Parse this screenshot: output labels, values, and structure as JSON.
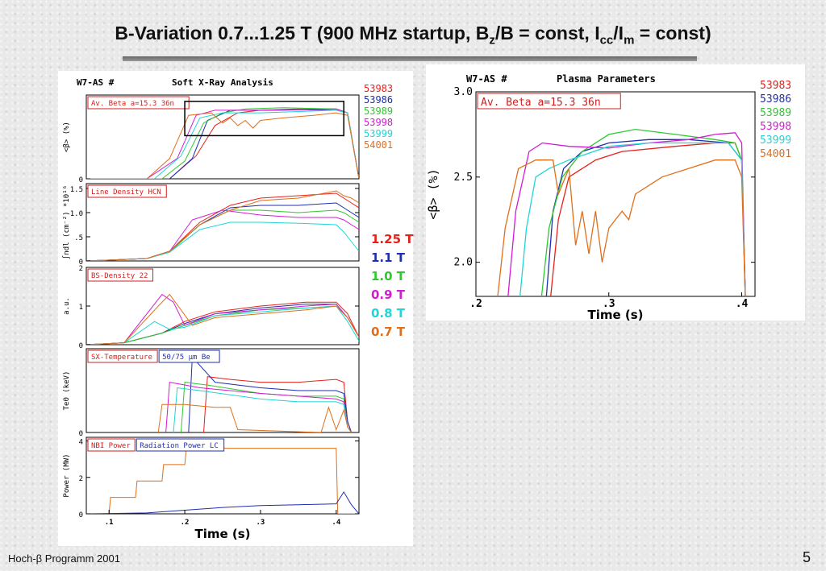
{
  "slide": {
    "title": "B-Variation 0.7...1.25 T (900 MHz startup, Bz/B = const, Icc/Im = const)",
    "footer_left": "Hoch-β Programm 2001",
    "page_number": "5"
  },
  "colors": {
    "53983": "#e8201a",
    "53986": "#1e2fb0",
    "53989": "#2fc92f",
    "53998": "#d41bd4",
    "53999": "#1fd6d6",
    "54001": "#e06f1c"
  },
  "field_legend": [
    {
      "label": "1.25 T",
      "color": "#e8201a"
    },
    {
      "label": "1.1 T",
      "color": "#1e2fb0"
    },
    {
      "label": "1.0 T",
      "color": "#2fc92f"
    },
    {
      "label": "0.9 T",
      "color": "#d41bd4"
    },
    {
      "label": "0.8 T",
      "color": "#1fd6d6"
    },
    {
      "label": "0.7 T",
      "color": "#e06f1c"
    }
  ],
  "chart_data": [
    {
      "type": "line",
      "header_left": "W7-AS #",
      "header_right": "Soft X-Ray Analysis",
      "label_box": "Av. Beta  a=15.3  36n",
      "ylabel": "<β> (%)",
      "yticks": [
        "0"
      ],
      "xlim": [
        0.07,
        0.43
      ],
      "ylim": [
        0,
        3.3
      ],
      "legend": [
        "53983",
        "53986",
        "53989",
        "53998",
        "53999",
        "54001"
      ],
      "series": [
        {
          "name": "53983",
          "x": [
            0.07,
            0.18,
            0.215,
            0.24,
            0.27,
            0.3,
            0.35,
            0.4,
            0.415,
            0.43
          ],
          "y": [
            0,
            0,
            0.9,
            2.1,
            2.6,
            2.7,
            2.75,
            2.75,
            2.6,
            0
          ]
        },
        {
          "name": "53986",
          "x": [
            0.07,
            0.18,
            0.21,
            0.23,
            0.26,
            0.3,
            0.35,
            0.4,
            0.415,
            0.43
          ],
          "y": [
            0,
            0,
            0.8,
            2.3,
            2.7,
            2.7,
            2.72,
            2.7,
            2.6,
            0
          ]
        },
        {
          "name": "53989",
          "x": [
            0.07,
            0.17,
            0.2,
            0.225,
            0.25,
            0.28,
            0.33,
            0.4,
            0.415,
            0.43
          ],
          "y": [
            0,
            0,
            0.7,
            2.2,
            2.6,
            2.75,
            2.8,
            2.75,
            2.6,
            0
          ]
        },
        {
          "name": "53998",
          "x": [
            0.07,
            0.15,
            0.19,
            0.215,
            0.24,
            0.28,
            0.33,
            0.4,
            0.415,
            0.43
          ],
          "y": [
            0,
            0,
            0.8,
            2.5,
            2.7,
            2.7,
            2.7,
            2.75,
            2.6,
            0
          ]
        },
        {
          "name": "53999",
          "x": [
            0.07,
            0.16,
            0.195,
            0.22,
            0.25,
            0.3,
            0.35,
            0.4,
            0.415,
            0.43
          ],
          "y": [
            0,
            0,
            0.9,
            2.4,
            2.6,
            2.6,
            2.65,
            2.7,
            2.6,
            0
          ]
        },
        {
          "name": "54001",
          "x": [
            0.07,
            0.15,
            0.18,
            0.205,
            0.235,
            0.25,
            0.26,
            0.27,
            0.28,
            0.29,
            0.3,
            0.33,
            0.37,
            0.4,
            0.415,
            0.43
          ],
          "y": [
            0,
            0,
            0.8,
            2.5,
            2.6,
            2.2,
            2.4,
            2.1,
            2.3,
            2.0,
            2.3,
            2.4,
            2.5,
            2.6,
            2.5,
            0
          ]
        }
      ]
    },
    {
      "type": "line",
      "label_box": "Line Density HCN",
      "ylabel": "∫ndl (cm⁻²) *10¹⁶",
      "yticks": [
        "0",
        ".5",
        "1.0",
        "1.5"
      ],
      "xlim": [
        0.07,
        0.43
      ],
      "ylim": [
        0,
        1.6
      ],
      "series": [
        {
          "name": "53983",
          "x": [
            0.07,
            0.15,
            0.18,
            0.22,
            0.26,
            0.3,
            0.35,
            0.4,
            0.41,
            0.42,
            0.43
          ],
          "y": [
            0,
            0.05,
            0.2,
            0.8,
            1.15,
            1.3,
            1.35,
            1.4,
            1.3,
            1.2,
            1.1
          ]
        },
        {
          "name": "53986",
          "x": [
            0.07,
            0.15,
            0.18,
            0.22,
            0.26,
            0.3,
            0.35,
            0.4,
            0.41,
            0.42,
            0.43
          ],
          "y": [
            0,
            0.05,
            0.2,
            0.75,
            1.1,
            1.15,
            1.15,
            1.2,
            1.1,
            1.0,
            0.9
          ]
        },
        {
          "name": "53989",
          "x": [
            0.07,
            0.15,
            0.18,
            0.22,
            0.26,
            0.3,
            0.35,
            0.4,
            0.41,
            0.42,
            0.43
          ],
          "y": [
            0,
            0.05,
            0.18,
            0.75,
            1.05,
            1.05,
            1.0,
            1.05,
            1.0,
            0.9,
            0.8
          ]
        },
        {
          "name": "53998",
          "x": [
            0.07,
            0.15,
            0.18,
            0.21,
            0.25,
            0.3,
            0.35,
            0.4,
            0.41,
            0.42,
            0.43
          ],
          "y": [
            0,
            0.05,
            0.2,
            0.85,
            1.05,
            0.95,
            0.9,
            0.9,
            0.85,
            0.75,
            0.65
          ]
        },
        {
          "name": "53999",
          "x": [
            0.07,
            0.15,
            0.18,
            0.22,
            0.26,
            0.3,
            0.35,
            0.4,
            0.41,
            0.42,
            0.43
          ],
          "y": [
            0,
            0.05,
            0.18,
            0.65,
            0.8,
            0.8,
            0.78,
            0.75,
            0.6,
            0.4,
            0.2
          ]
        },
        {
          "name": "54001",
          "x": [
            0.07,
            0.15,
            0.18,
            0.22,
            0.26,
            0.3,
            0.35,
            0.4,
            0.41,
            0.42,
            0.43
          ],
          "y": [
            0,
            0.05,
            0.2,
            0.75,
            1.05,
            1.25,
            1.3,
            1.45,
            1.35,
            1.3,
            1.2
          ]
        }
      ]
    },
    {
      "type": "line",
      "label_box": "BS-Density 22",
      "ylabel": "a.u.",
      "yticks": [
        "0",
        "1",
        "2"
      ],
      "xlim": [
        0.07,
        0.43
      ],
      "ylim": [
        0,
        2.0
      ],
      "series": [
        {
          "name": "53983",
          "x": [
            0.07,
            0.12,
            0.17,
            0.2,
            0.24,
            0.3,
            0.36,
            0.4,
            0.415,
            0.43
          ],
          "y": [
            0,
            0.05,
            0.3,
            0.6,
            0.85,
            1.0,
            1.1,
            1.1,
            0.8,
            0.2
          ]
        },
        {
          "name": "53986",
          "x": [
            0.07,
            0.12,
            0.17,
            0.2,
            0.24,
            0.3,
            0.36,
            0.4,
            0.415,
            0.43
          ],
          "y": [
            0,
            0.05,
            0.3,
            0.55,
            0.8,
            0.95,
            1.05,
            1.05,
            0.7,
            0.2
          ]
        },
        {
          "name": "53989",
          "x": [
            0.07,
            0.12,
            0.17,
            0.2,
            0.24,
            0.3,
            0.36,
            0.4,
            0.415,
            0.43
          ],
          "y": [
            0,
            0.05,
            0.3,
            0.5,
            0.75,
            0.9,
            0.95,
            1.0,
            0.7,
            0.2
          ]
        },
        {
          "name": "53998",
          "x": [
            0.07,
            0.12,
            0.17,
            0.185,
            0.2,
            0.24,
            0.3,
            0.36,
            0.4,
            0.415,
            0.43
          ],
          "y": [
            0,
            0.05,
            1.3,
            1.1,
            0.5,
            0.8,
            0.9,
            1.0,
            1.05,
            0.7,
            0.2
          ]
        },
        {
          "name": "53999",
          "x": [
            0.07,
            0.12,
            0.16,
            0.18,
            0.2,
            0.24,
            0.3,
            0.36,
            0.4,
            0.415,
            0.43
          ],
          "y": [
            0,
            0.05,
            0.6,
            0.4,
            0.45,
            0.75,
            0.85,
            0.95,
            1.0,
            0.6,
            0.1
          ]
        },
        {
          "name": "54001",
          "x": [
            0.07,
            0.12,
            0.165,
            0.18,
            0.195,
            0.21,
            0.24,
            0.3,
            0.36,
            0.4,
            0.415,
            0.43
          ],
          "y": [
            0,
            0.05,
            1.0,
            1.3,
            0.9,
            0.5,
            0.7,
            0.8,
            0.9,
            1.0,
            0.7,
            0.2
          ]
        }
      ]
    },
    {
      "type": "line",
      "label_box": "SX-Temperature",
      "label_box_2": "50/75  μm Be",
      "ylabel": "Te0 (keV)",
      "yticks": [
        "0"
      ],
      "xlim": [
        0.07,
        0.43
      ],
      "ylim": [
        0,
        1.5
      ],
      "series": [
        {
          "name": "53983",
          "x": [
            0.225,
            0.23,
            0.26,
            0.3,
            0.35,
            0.4,
            0.41,
            0.415,
            0.42
          ],
          "y": [
            0,
            1.0,
            0.95,
            0.9,
            0.9,
            0.95,
            0.9,
            0.2,
            0
          ]
        },
        {
          "name": "53986",
          "x": [
            0.205,
            0.21,
            0.24,
            0.3,
            0.35,
            0.4,
            0.41,
            0.415,
            0.42
          ],
          "y": [
            0,
            1.35,
            0.9,
            0.8,
            0.75,
            0.75,
            0.7,
            0.2,
            0
          ]
        },
        {
          "name": "53989",
          "x": [
            0.195,
            0.2,
            0.23,
            0.3,
            0.35,
            0.4,
            0.41,
            0.415,
            0.42
          ],
          "y": [
            0,
            0.9,
            0.85,
            0.7,
            0.65,
            0.65,
            0.6,
            0.1,
            0
          ]
        },
        {
          "name": "53998",
          "x": [
            0.175,
            0.18,
            0.22,
            0.3,
            0.35,
            0.4,
            0.41,
            0.415,
            0.42
          ],
          "y": [
            0,
            0.9,
            0.8,
            0.7,
            0.65,
            0.6,
            0.55,
            0.1,
            0
          ]
        },
        {
          "name": "53999",
          "x": [
            0.185,
            0.19,
            0.22,
            0.3,
            0.35,
            0.4,
            0.41,
            0.415,
            0.42
          ],
          "y": [
            0,
            0.8,
            0.75,
            0.6,
            0.55,
            0.55,
            0.5,
            0.1,
            0
          ]
        },
        {
          "name": "54001",
          "x": [
            0.165,
            0.17,
            0.2,
            0.24,
            0.26,
            0.27,
            0.38,
            0.39,
            0.4,
            0.41,
            0.415,
            0.42
          ],
          "y": [
            0,
            0.5,
            0.5,
            0.45,
            0.45,
            0.05,
            0,
            0.45,
            0.05,
            0.4,
            0.1,
            0
          ]
        }
      ]
    },
    {
      "type": "line",
      "label_box": "NBI Power",
      "label_box_2": "Radiation Power LC",
      "ylabel": "Power (MW)",
      "yticks": [
        "0",
        "2",
        "4"
      ],
      "xlabel": "Time (s)",
      "xticks": [
        ".1",
        ".2",
        ".3",
        ".4"
      ],
      "xlim": [
        0.07,
        0.43
      ],
      "ylim": [
        0,
        4.2
      ],
      "series": [
        {
          "name": "NBI",
          "x": [
            0.07,
            0.1,
            0.102,
            0.135,
            0.137,
            0.17,
            0.172,
            0.2,
            0.202,
            0.4,
            0.402,
            0.43
          ],
          "y": [
            0,
            0,
            0.9,
            0.9,
            1.8,
            1.8,
            2.7,
            2.7,
            3.6,
            3.6,
            0,
            0
          ]
        },
        {
          "name": "Radiation",
          "x": [
            0.07,
            0.15,
            0.2,
            0.25,
            0.3,
            0.35,
            0.4,
            0.41,
            0.42,
            0.43
          ],
          "y": [
            0,
            0.05,
            0.2,
            0.35,
            0.45,
            0.5,
            0.55,
            1.2,
            0.5,
            0
          ]
        }
      ]
    },
    {
      "type": "line",
      "header_left": "W7-AS #",
      "header_right": "Plasma Parameters",
      "label_box": "Av. Beta  a=15.3  36n",
      "ylabel": "<β> (%)",
      "xlabel": "Time (s)",
      "xticks": [
        ".2",
        ".3",
        ".4"
      ],
      "yticks": [
        "2.0",
        "2.5",
        "3.0"
      ],
      "xlim": [
        0.2,
        0.41
      ],
      "ylim": [
        1.8,
        3.0
      ],
      "legend": [
        "53983",
        "53986",
        "53989",
        "53998",
        "53999",
        "54001"
      ],
      "series": [
        {
          "name": "53983",
          "x": [
            0.2,
            0.255,
            0.262,
            0.27,
            0.29,
            0.31,
            0.35,
            0.38,
            0.395,
            0.4,
            0.403
          ],
          "y": [
            1.7,
            1.7,
            2.25,
            2.5,
            2.6,
            2.65,
            2.68,
            2.7,
            2.7,
            2.6,
            1.7
          ]
        },
        {
          "name": "53986",
          "x": [
            0.2,
            0.252,
            0.258,
            0.266,
            0.28,
            0.3,
            0.33,
            0.36,
            0.39,
            0.4,
            0.403
          ],
          "y": [
            1.7,
            1.7,
            2.3,
            2.55,
            2.65,
            2.7,
            2.72,
            2.72,
            2.7,
            2.6,
            1.7
          ]
        },
        {
          "name": "53989",
          "x": [
            0.2,
            0.248,
            0.255,
            0.265,
            0.28,
            0.3,
            0.32,
            0.35,
            0.38,
            0.395,
            0.4,
            0.403
          ],
          "y": [
            1.7,
            1.7,
            2.2,
            2.5,
            2.65,
            2.75,
            2.78,
            2.75,
            2.72,
            2.7,
            2.6,
            1.7
          ]
        },
        {
          "name": "53998",
          "x": [
            0.2,
            0.223,
            0.23,
            0.24,
            0.25,
            0.27,
            0.3,
            0.33,
            0.36,
            0.38,
            0.395,
            0.4,
            0.403
          ],
          "y": [
            1.7,
            1.7,
            2.3,
            2.65,
            2.7,
            2.68,
            2.67,
            2.7,
            2.72,
            2.75,
            2.76,
            2.7,
            1.7
          ]
        },
        {
          "name": "53999",
          "x": [
            0.2,
            0.232,
            0.238,
            0.245,
            0.255,
            0.27,
            0.3,
            0.33,
            0.36,
            0.39,
            0.4,
            0.403
          ],
          "y": [
            1.7,
            1.7,
            2.2,
            2.5,
            2.55,
            2.6,
            2.68,
            2.7,
            2.7,
            2.7,
            2.6,
            1.7
          ]
        },
        {
          "name": "54001",
          "x": [
            0.2,
            0.215,
            0.222,
            0.232,
            0.245,
            0.258,
            0.262,
            0.27,
            0.275,
            0.28,
            0.285,
            0.29,
            0.295,
            0.3,
            0.31,
            0.315,
            0.32,
            0.33,
            0.34,
            0.36,
            0.38,
            0.395,
            0.4,
            0.403
          ],
          "y": [
            1.7,
            1.7,
            2.2,
            2.55,
            2.6,
            2.6,
            2.4,
            2.55,
            2.1,
            2.3,
            2.05,
            2.3,
            2.0,
            2.2,
            2.3,
            2.25,
            2.4,
            2.45,
            2.5,
            2.55,
            2.6,
            2.6,
            2.5,
            1.7
          ]
        }
      ]
    }
  ]
}
